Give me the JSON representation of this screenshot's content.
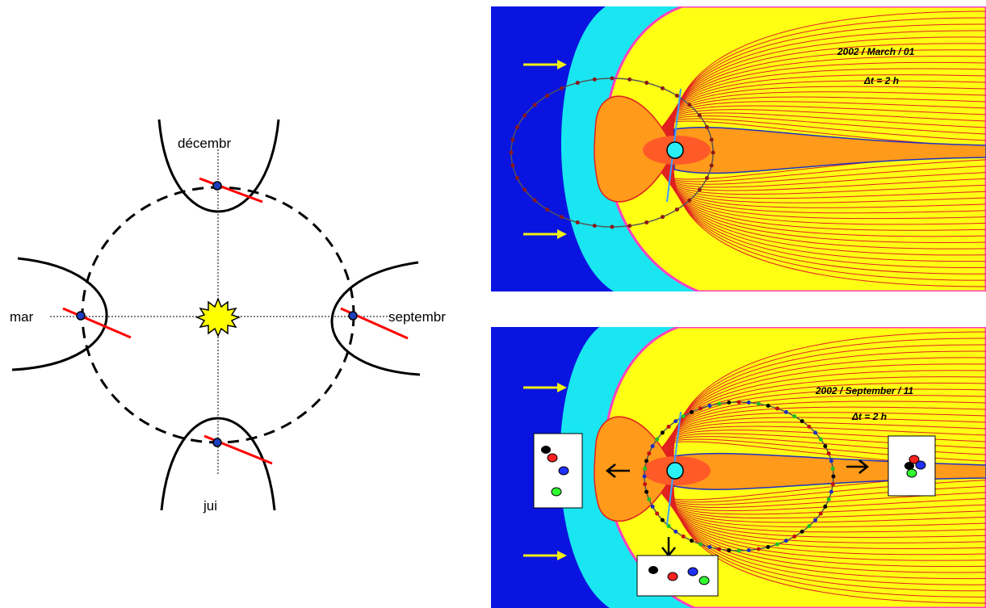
{
  "orbit_diagram": {
    "labels": {
      "december": "décembr",
      "march": "mar",
      "september": "septembr",
      "june": "jui"
    },
    "colors": {
      "sun": "#ffff00",
      "earth": "#1f3fbf",
      "axis": "#ff0000"
    }
  },
  "magnetosphere_panels": [
    {
      "date": "2002 / March / 01",
      "interval": "Δt = 2 h"
    },
    {
      "date": "2002 / September / 11",
      "interval": "Δt = 2 h"
    }
  ],
  "colors": {
    "solar_wind": "#0a14e0",
    "magnetosheath": "#19e6f0",
    "magnetosphere": "#ffff14",
    "plasma_sheet": "#ff9a1a",
    "ring": "#ff5a28",
    "earth": "#29f0f5",
    "field_line": "#e02020",
    "arrow": "#f0f014"
  }
}
